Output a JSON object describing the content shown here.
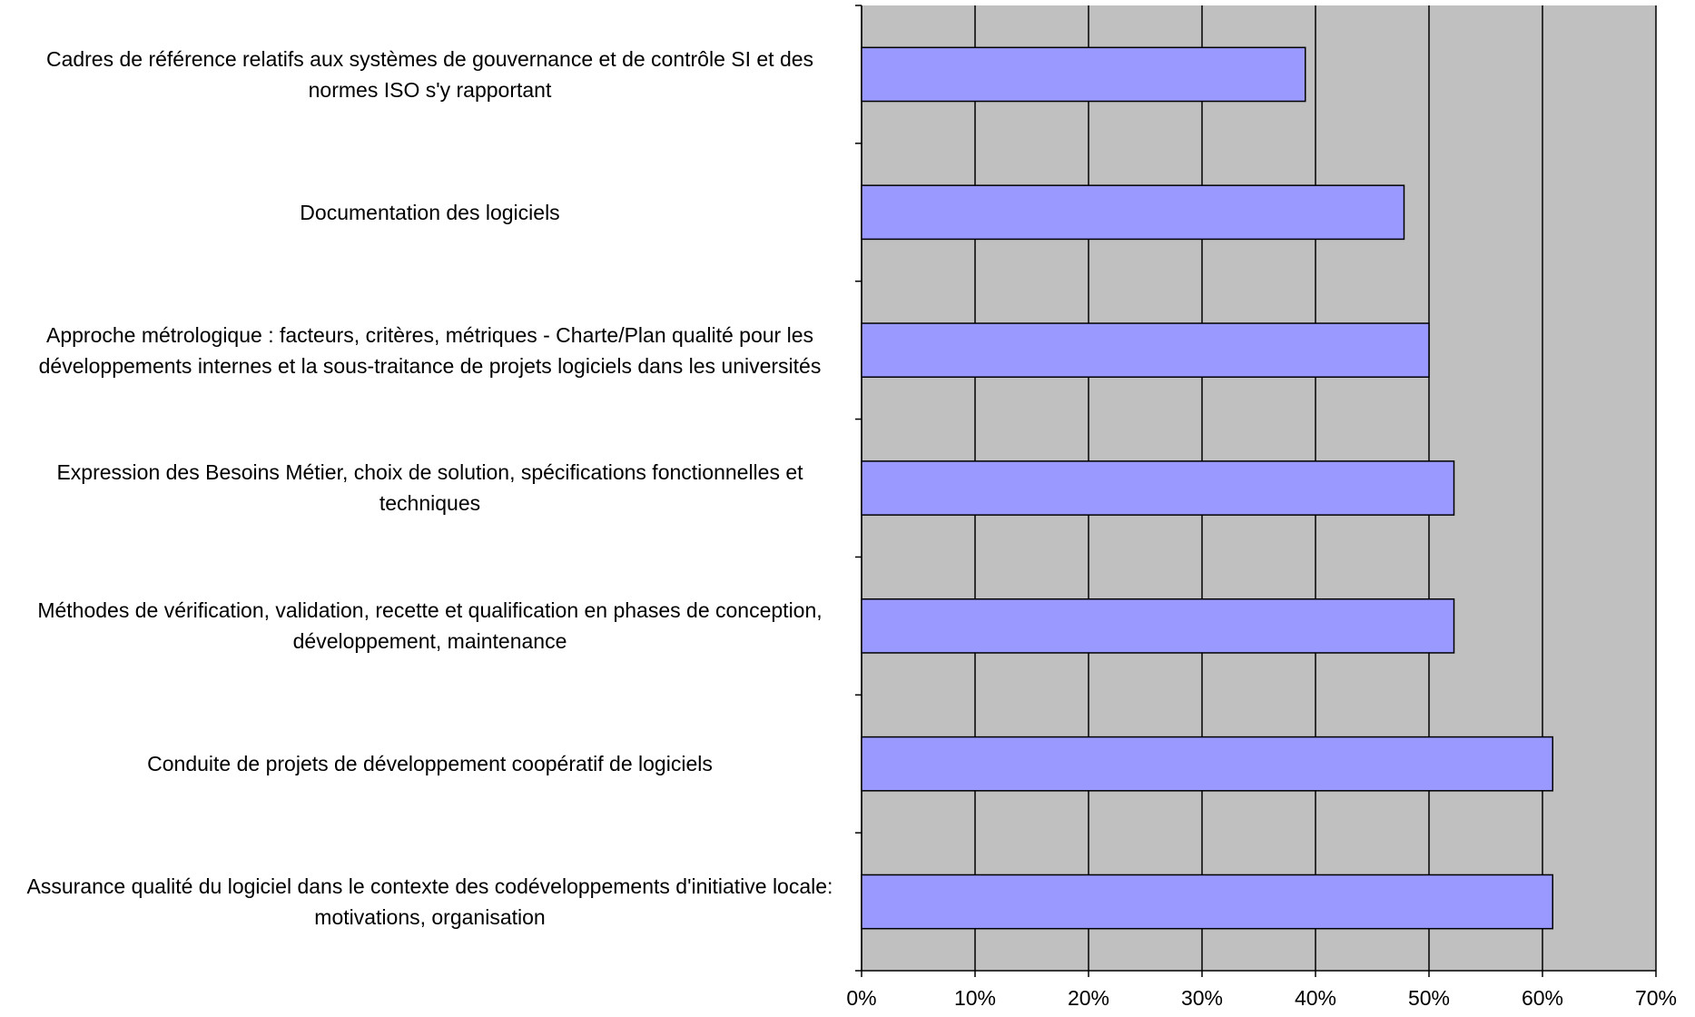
{
  "chart_data": {
    "type": "barh",
    "categories": [
      "Cadres de référence relatifs aux systèmes de gouvernance et de contrôle SI et des normes ISO s'y rapportant",
      "Documentation des logiciels",
      "Approche métrologique : facteurs, critères, métriques - Charte/Plan qualité pour les développements internes et la sous-traitance de projets logiciels dans les universités",
      "Expression des Besoins Métier, choix de solution, spécifications fonctionnelles et techniques",
      "Méthodes de vérification, validation, recette et qualification en phases de conception, développement, maintenance",
      "Conduite de projets de développement coopératif de logiciels",
      "Assurance qualité du logiciel dans le contexte des codéveloppements d'initiative locale: motivations, organisation"
    ],
    "values": [
      39.1,
      47.8,
      50,
      52.2,
      52.2,
      60.9,
      60.9
    ],
    "color": "#9999ff",
    "plot_background": "#c0c0c0",
    "xlim": [
      0,
      70
    ],
    "xticks": [
      {
        "value": 0,
        "label": "0%"
      },
      {
        "value": 10,
        "label": "10%"
      },
      {
        "value": 20,
        "label": "20%"
      },
      {
        "value": 30,
        "label": "30%"
      },
      {
        "value": 40,
        "label": "40%"
      },
      {
        "value": 50,
        "label": "50%"
      },
      {
        "value": 60,
        "label": "60%"
      },
      {
        "value": 70,
        "label": "70%"
      }
    ],
    "grid": true
  }
}
